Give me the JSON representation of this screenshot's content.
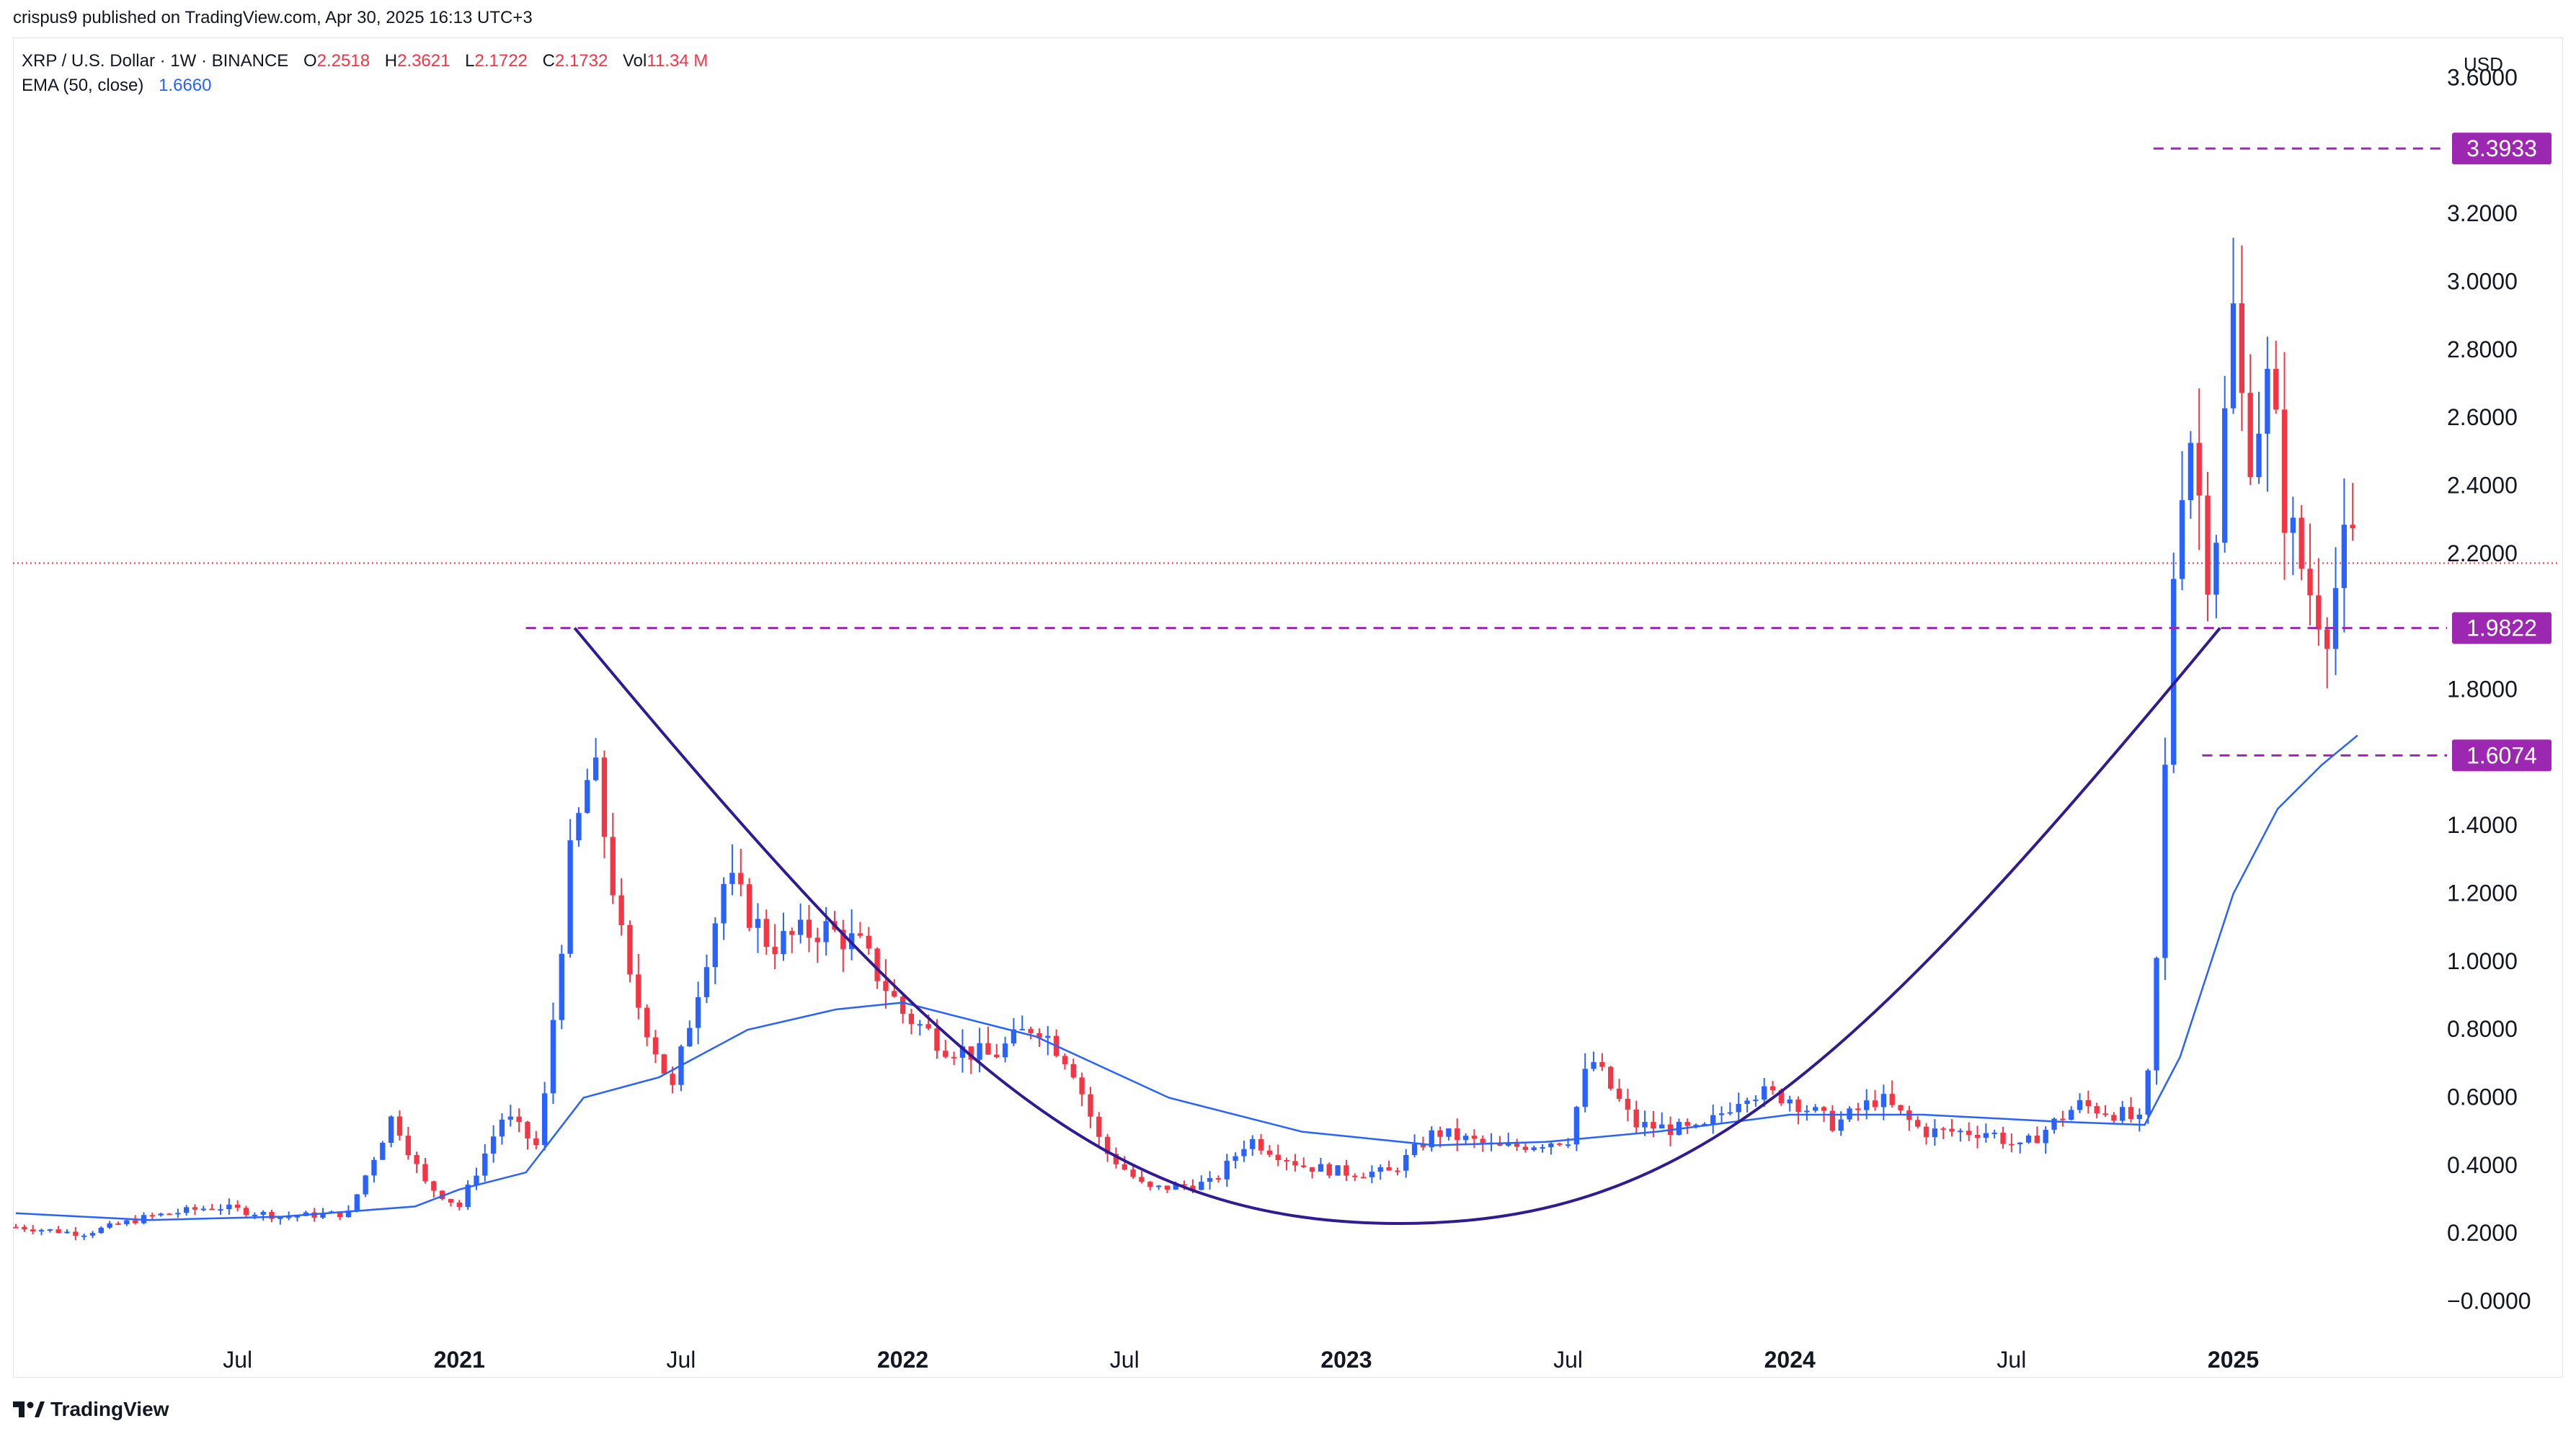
{
  "header": {
    "published": "crispus9 published on TradingView.com, Apr 30, 2025 16:13 UTC+3"
  },
  "legend": {
    "symbol": "XRP / U.S. Dollar · 1W · BINANCE",
    "open_label": "O",
    "open": "2.2518",
    "high_label": "H",
    "high": "2.3621",
    "low_label": "L",
    "low": "2.1722",
    "close_label": "C",
    "close": "2.1732",
    "vol_label": "Vol",
    "vol": "11.34 M",
    "ema_label": "EMA (50, close)",
    "ema_value": "1.6660"
  },
  "footer": {
    "brand": "TradingView"
  },
  "colors": {
    "up": "#2962ff",
    "down": "#f23645",
    "ema": "#2962ff",
    "level": "#9c27b0",
    "cup": "#311b92",
    "last_price_line": "#f23645"
  },
  "chart_data": {
    "type": "candlestick",
    "currency": "USD",
    "ylim": [
      -0.05,
      3.72
    ],
    "y_ticks": [
      "3.6000",
      "3.2000",
      "3.0000",
      "2.8000",
      "2.6000",
      "2.4000",
      "2.2000",
      "1.8000",
      "1.4000",
      "1.2000",
      "1.0000",
      "0.8000",
      "0.6000",
      "0.4000",
      "0.2000",
      "−0.0000"
    ],
    "x_ticks": [
      {
        "label": "Jul",
        "t": 0.5
      },
      {
        "label": "2021",
        "t": 1.0
      },
      {
        "label": "Jul",
        "t": 1.5
      },
      {
        "label": "2022",
        "t": 2.0
      },
      {
        "label": "Jul",
        "t": 2.5
      },
      {
        "label": "2023",
        "t": 3.0
      },
      {
        "label": "Jul",
        "t": 3.5
      },
      {
        "label": "2024",
        "t": 4.0
      },
      {
        "label": "Jul",
        "t": 4.5
      },
      {
        "label": "2025",
        "t": 5.0
      }
    ],
    "price_levels": [
      {
        "value": 3.3933,
        "label": "3.3933",
        "from_t": 4.82
      },
      {
        "value": 1.9822,
        "label": "1.9822",
        "from_t": 1.15
      },
      {
        "value": 1.6074,
        "label": "1.6074",
        "from_t": 4.93
      }
    ],
    "last_price": 2.1732,
    "key_prices": [
      {
        "t": 0.0,
        "p": 0.22
      },
      {
        "t": 0.15,
        "p": 0.2
      },
      {
        "t": 0.3,
        "p": 0.25
      },
      {
        "t": 0.45,
        "p": 0.28
      },
      {
        "t": 0.6,
        "p": 0.25
      },
      {
        "t": 0.75,
        "p": 0.26
      },
      {
        "t": 0.85,
        "p": 0.55
      },
      {
        "t": 0.92,
        "p": 0.35
      },
      {
        "t": 1.0,
        "p": 0.28
      },
      {
        "t": 1.1,
        "p": 0.55
      },
      {
        "t": 1.18,
        "p": 0.45
      },
      {
        "t": 1.25,
        "p": 1.3
      },
      {
        "t": 1.3,
        "p": 1.6
      },
      {
        "t": 1.38,
        "p": 0.95
      },
      {
        "t": 1.48,
        "p": 0.62
      },
      {
        "t": 1.6,
        "p": 1.25
      },
      {
        "t": 1.7,
        "p": 1.05
      },
      {
        "t": 1.82,
        "p": 1.1
      },
      {
        "t": 1.9,
        "p": 1.05
      },
      {
        "t": 2.0,
        "p": 0.85
      },
      {
        "t": 2.1,
        "p": 0.75
      },
      {
        "t": 2.2,
        "p": 0.72
      },
      {
        "t": 2.3,
        "p": 0.82
      },
      {
        "t": 2.38,
        "p": 0.7
      },
      {
        "t": 2.45,
        "p": 0.45
      },
      {
        "t": 2.55,
        "p": 0.33
      },
      {
        "t": 2.7,
        "p": 0.35
      },
      {
        "t": 2.78,
        "p": 0.48
      },
      {
        "t": 2.9,
        "p": 0.4
      },
      {
        "t": 3.0,
        "p": 0.38
      },
      {
        "t": 3.1,
        "p": 0.38
      },
      {
        "t": 3.2,
        "p": 0.5
      },
      {
        "t": 3.35,
        "p": 0.45
      },
      {
        "t": 3.5,
        "p": 0.48
      },
      {
        "t": 3.55,
        "p": 0.72
      },
      {
        "t": 3.65,
        "p": 0.52
      },
      {
        "t": 3.8,
        "p": 0.5
      },
      {
        "t": 3.9,
        "p": 0.62
      },
      {
        "t": 4.0,
        "p": 0.6
      },
      {
        "t": 4.1,
        "p": 0.52
      },
      {
        "t": 4.2,
        "p": 0.6
      },
      {
        "t": 4.3,
        "p": 0.5
      },
      {
        "t": 4.45,
        "p": 0.5
      },
      {
        "t": 4.52,
        "p": 0.45
      },
      {
        "t": 4.65,
        "p": 0.58
      },
      {
        "t": 4.75,
        "p": 0.55
      },
      {
        "t": 4.8,
        "p": 0.52
      },
      {
        "t": 4.83,
        "p": 1.05
      },
      {
        "t": 4.87,
        "p": 2.3
      },
      {
        "t": 4.9,
        "p": 2.6
      },
      {
        "t": 4.95,
        "p": 2.1
      },
      {
        "t": 5.0,
        "p": 2.9
      },
      {
        "t": 5.03,
        "p": 2.5
      },
      {
        "t": 5.08,
        "p": 2.7
      },
      {
        "t": 5.12,
        "p": 2.3
      },
      {
        "t": 5.17,
        "p": 2.1
      },
      {
        "t": 5.21,
        "p": 2.0
      },
      {
        "t": 5.26,
        "p": 2.25
      },
      {
        "t": 5.28,
        "p": 2.1732
      }
    ],
    "ema_50": [
      {
        "t": 0.0,
        "p": 0.26
      },
      {
        "t": 0.3,
        "p": 0.24
      },
      {
        "t": 0.6,
        "p": 0.25
      },
      {
        "t": 0.9,
        "p": 0.28
      },
      {
        "t": 1.0,
        "p": 0.33
      },
      {
        "t": 1.15,
        "p": 0.38
      },
      {
        "t": 1.28,
        "p": 0.6
      },
      {
        "t": 1.45,
        "p": 0.66
      },
      {
        "t": 1.65,
        "p": 0.8
      },
      {
        "t": 1.85,
        "p": 0.86
      },
      {
        "t": 2.0,
        "p": 0.88
      },
      {
        "t": 2.3,
        "p": 0.78
      },
      {
        "t": 2.6,
        "p": 0.6
      },
      {
        "t": 2.9,
        "p": 0.5
      },
      {
        "t": 3.2,
        "p": 0.46
      },
      {
        "t": 3.45,
        "p": 0.47
      },
      {
        "t": 3.7,
        "p": 0.5
      },
      {
        "t": 4.0,
        "p": 0.55
      },
      {
        "t": 4.3,
        "p": 0.55
      },
      {
        "t": 4.6,
        "p": 0.53
      },
      {
        "t": 4.8,
        "p": 0.52
      },
      {
        "t": 4.88,
        "p": 0.72
      },
      {
        "t": 5.0,
        "p": 1.2
      },
      {
        "t": 5.1,
        "p": 1.45
      },
      {
        "t": 5.2,
        "p": 1.58
      },
      {
        "t": 5.28,
        "p": 1.666
      }
    ],
    "cup_curve": {
      "start_t": 1.26,
      "start_p": 1.9822,
      "bottom_t": 3.12,
      "bottom_p": 0.23,
      "end_t": 4.97,
      "end_p": 1.9822
    }
  }
}
